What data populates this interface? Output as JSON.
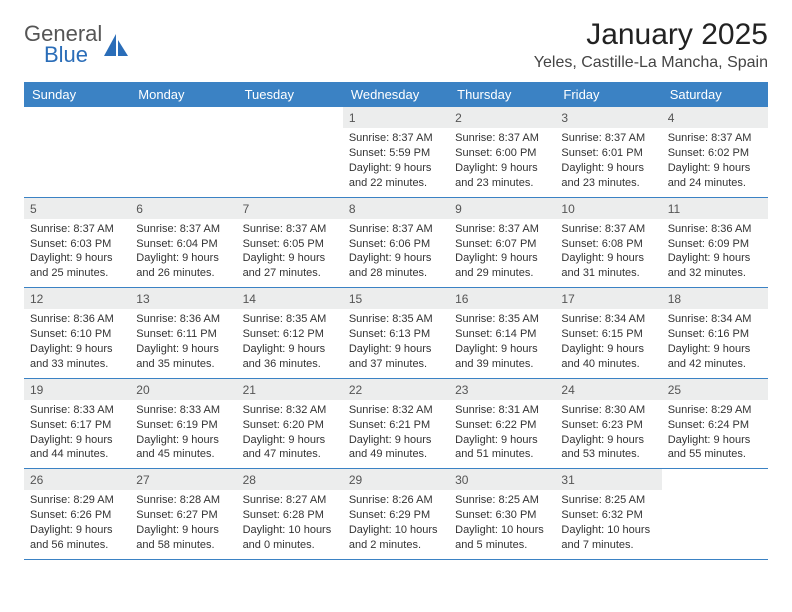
{
  "brand": {
    "top": "General",
    "bottom": "Blue"
  },
  "title": "January 2025",
  "location": "Yeles, Castille-La Mancha, Spain",
  "colors": {
    "header_bg": "#3b82c4",
    "header_text": "#ffffff",
    "daynum_bg": "#eceded",
    "border": "#3b82c4",
    "logo_accent": "#2a6db8"
  },
  "dayNames": [
    "Sunday",
    "Monday",
    "Tuesday",
    "Wednesday",
    "Thursday",
    "Friday",
    "Saturday"
  ],
  "weeks": [
    [
      {
        "n": "",
        "sr": "",
        "ss": "",
        "dl": ""
      },
      {
        "n": "",
        "sr": "",
        "ss": "",
        "dl": ""
      },
      {
        "n": "",
        "sr": "",
        "ss": "",
        "dl": ""
      },
      {
        "n": "1",
        "sr": "8:37 AM",
        "ss": "5:59 PM",
        "dl": "9 hours and 22 minutes."
      },
      {
        "n": "2",
        "sr": "8:37 AM",
        "ss": "6:00 PM",
        "dl": "9 hours and 23 minutes."
      },
      {
        "n": "3",
        "sr": "8:37 AM",
        "ss": "6:01 PM",
        "dl": "9 hours and 23 minutes."
      },
      {
        "n": "4",
        "sr": "8:37 AM",
        "ss": "6:02 PM",
        "dl": "9 hours and 24 minutes."
      }
    ],
    [
      {
        "n": "5",
        "sr": "8:37 AM",
        "ss": "6:03 PM",
        "dl": "9 hours and 25 minutes."
      },
      {
        "n": "6",
        "sr": "8:37 AM",
        "ss": "6:04 PM",
        "dl": "9 hours and 26 minutes."
      },
      {
        "n": "7",
        "sr": "8:37 AM",
        "ss": "6:05 PM",
        "dl": "9 hours and 27 minutes."
      },
      {
        "n": "8",
        "sr": "8:37 AM",
        "ss": "6:06 PM",
        "dl": "9 hours and 28 minutes."
      },
      {
        "n": "9",
        "sr": "8:37 AM",
        "ss": "6:07 PM",
        "dl": "9 hours and 29 minutes."
      },
      {
        "n": "10",
        "sr": "8:37 AM",
        "ss": "6:08 PM",
        "dl": "9 hours and 31 minutes."
      },
      {
        "n": "11",
        "sr": "8:36 AM",
        "ss": "6:09 PM",
        "dl": "9 hours and 32 minutes."
      }
    ],
    [
      {
        "n": "12",
        "sr": "8:36 AM",
        "ss": "6:10 PM",
        "dl": "9 hours and 33 minutes."
      },
      {
        "n": "13",
        "sr": "8:36 AM",
        "ss": "6:11 PM",
        "dl": "9 hours and 35 minutes."
      },
      {
        "n": "14",
        "sr": "8:35 AM",
        "ss": "6:12 PM",
        "dl": "9 hours and 36 minutes."
      },
      {
        "n": "15",
        "sr": "8:35 AM",
        "ss": "6:13 PM",
        "dl": "9 hours and 37 minutes."
      },
      {
        "n": "16",
        "sr": "8:35 AM",
        "ss": "6:14 PM",
        "dl": "9 hours and 39 minutes."
      },
      {
        "n": "17",
        "sr": "8:34 AM",
        "ss": "6:15 PM",
        "dl": "9 hours and 40 minutes."
      },
      {
        "n": "18",
        "sr": "8:34 AM",
        "ss": "6:16 PM",
        "dl": "9 hours and 42 minutes."
      }
    ],
    [
      {
        "n": "19",
        "sr": "8:33 AM",
        "ss": "6:17 PM",
        "dl": "9 hours and 44 minutes."
      },
      {
        "n": "20",
        "sr": "8:33 AM",
        "ss": "6:19 PM",
        "dl": "9 hours and 45 minutes."
      },
      {
        "n": "21",
        "sr": "8:32 AM",
        "ss": "6:20 PM",
        "dl": "9 hours and 47 minutes."
      },
      {
        "n": "22",
        "sr": "8:32 AM",
        "ss": "6:21 PM",
        "dl": "9 hours and 49 minutes."
      },
      {
        "n": "23",
        "sr": "8:31 AM",
        "ss": "6:22 PM",
        "dl": "9 hours and 51 minutes."
      },
      {
        "n": "24",
        "sr": "8:30 AM",
        "ss": "6:23 PM",
        "dl": "9 hours and 53 minutes."
      },
      {
        "n": "25",
        "sr": "8:29 AM",
        "ss": "6:24 PM",
        "dl": "9 hours and 55 minutes."
      }
    ],
    [
      {
        "n": "26",
        "sr": "8:29 AM",
        "ss": "6:26 PM",
        "dl": "9 hours and 56 minutes."
      },
      {
        "n": "27",
        "sr": "8:28 AM",
        "ss": "6:27 PM",
        "dl": "9 hours and 58 minutes."
      },
      {
        "n": "28",
        "sr": "8:27 AM",
        "ss": "6:28 PM",
        "dl": "10 hours and 0 minutes."
      },
      {
        "n": "29",
        "sr": "8:26 AM",
        "ss": "6:29 PM",
        "dl": "10 hours and 2 minutes."
      },
      {
        "n": "30",
        "sr": "8:25 AM",
        "ss": "6:30 PM",
        "dl": "10 hours and 5 minutes."
      },
      {
        "n": "31",
        "sr": "8:25 AM",
        "ss": "6:32 PM",
        "dl": "10 hours and 7 minutes."
      },
      {
        "n": "",
        "sr": "",
        "ss": "",
        "dl": ""
      }
    ]
  ],
  "labels": {
    "sunrise": "Sunrise:",
    "sunset": "Sunset:",
    "daylight": "Daylight:"
  }
}
